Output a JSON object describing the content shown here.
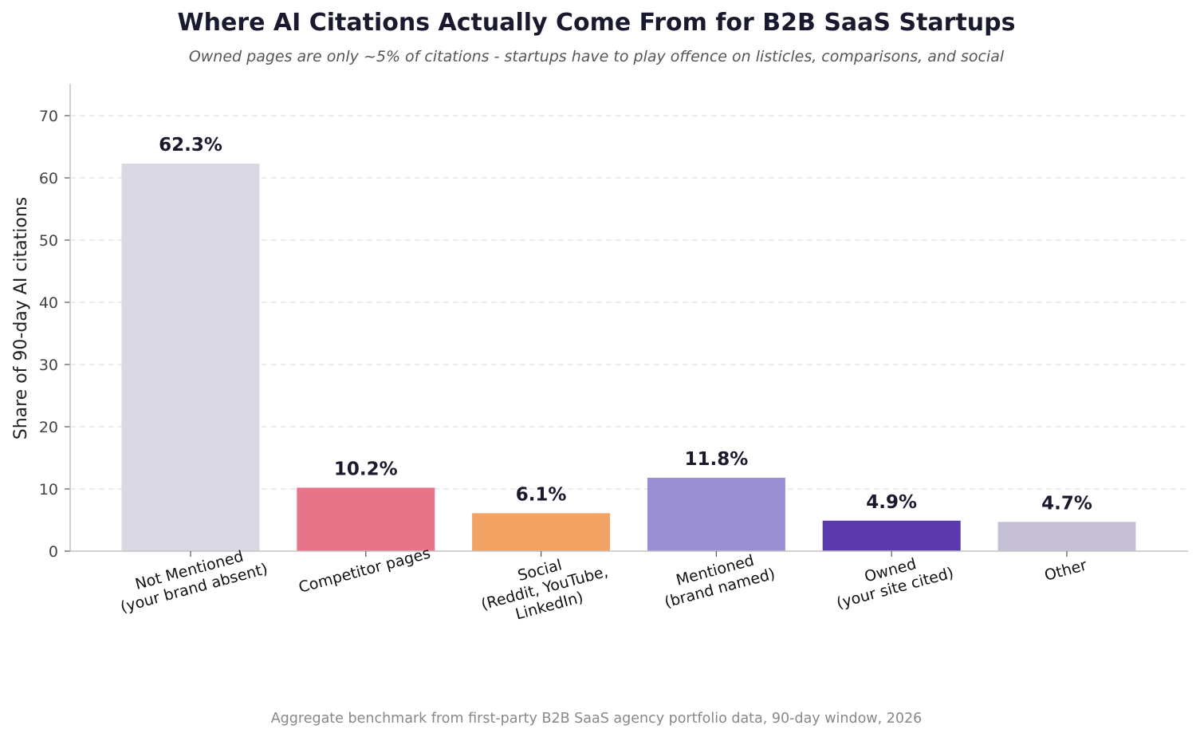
{
  "chart_data": {
    "type": "bar",
    "title": "Where AI Citations Actually Come From for B2B SaaS Startups",
    "subtitle": "Owned pages are only ~5% of citations - startups have to play offence on listicles, comparisons, and social",
    "ylabel": "Share of 90-day AI citations",
    "xlabel": "",
    "ylim": [
      0,
      75
    ],
    "yticks": [
      0,
      10,
      20,
      30,
      40,
      50,
      60,
      70
    ],
    "grid": "horizontal dashed",
    "categories": [
      [
        "Not Mentioned",
        "(your brand absent)"
      ],
      [
        "Competitor pages"
      ],
      [
        "Social",
        "(Reddit, YouTube,",
        "LinkedIn)"
      ],
      [
        "Mentioned",
        "(brand named)"
      ],
      [
        "Owned",
        "(your site cited)"
      ],
      [
        "Other"
      ]
    ],
    "values": [
      62.3,
      10.2,
      6.1,
      11.8,
      4.9,
      4.7
    ],
    "data_labels": [
      "62.3%",
      "10.2%",
      "6.1%",
      "11.8%",
      "4.9%",
      "4.7%"
    ],
    "colors": [
      "#d9d8e3",
      "#e87489",
      "#f2a262",
      "#9b8fd3",
      "#5a3aad",
      "#c5c0d6"
    ],
    "footnote": "Aggregate benchmark from first-party B2B SaaS agency portfolio data, 90-day window, 2026"
  }
}
